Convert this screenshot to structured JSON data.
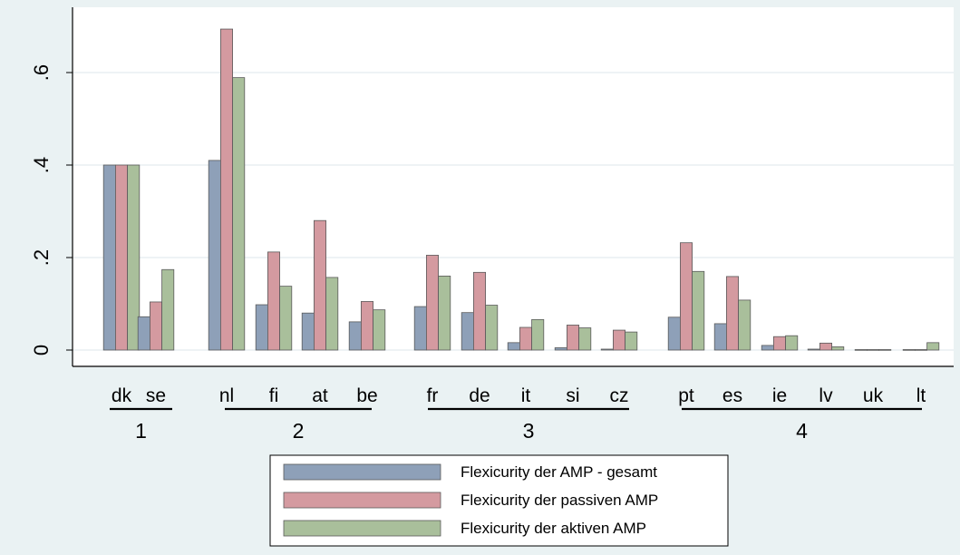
{
  "chart_data": {
    "type": "bar",
    "title": "",
    "xlabel": "",
    "ylabel": "",
    "ylim": [
      -0.04,
      0.74
    ],
    "yticks": [
      0,
      0.2,
      0.4,
      0.6
    ],
    "ytick_labels": [
      "0",
      ".2",
      ".4",
      ".6"
    ],
    "grid": true,
    "legend_position": "bottom",
    "groups": [
      {
        "label": "1",
        "countries": [
          "dk",
          "se"
        ]
      },
      {
        "label": "2",
        "countries": [
          "nl",
          "fi",
          "at",
          "be"
        ]
      },
      {
        "label": "3",
        "countries": [
          "fr",
          "de",
          "it",
          "si",
          "cz"
        ]
      },
      {
        "label": "4",
        "countries": [
          "pt",
          "es",
          "ie",
          "lv",
          "uk",
          "lt"
        ]
      }
    ],
    "categories": [
      "dk",
      "se",
      "nl",
      "fi",
      "at",
      "be",
      "fr",
      "de",
      "it",
      "si",
      "cz",
      "pt",
      "es",
      "ie",
      "lv",
      "uk",
      "lt"
    ],
    "series": [
      {
        "name": "Flexicurity der AMP - gesamt",
        "color": "#8ea0b8",
        "values": [
          0.4,
          0.072,
          0.41,
          0.098,
          0.08,
          0.061,
          0.094,
          0.081,
          0.016,
          0.005,
          0.002,
          0.071,
          0.057,
          0.01,
          0.002,
          0.001,
          0.001
        ]
      },
      {
        "name": "Flexicurity der passiven AMP",
        "color": "#d49aa0",
        "values": [
          0.4,
          0.104,
          0.694,
          0.212,
          0.28,
          0.105,
          0.205,
          0.168,
          0.049,
          0.054,
          0.043,
          0.232,
          0.159,
          0.029,
          0.015,
          0.001,
          0.001
        ]
      },
      {
        "name": "Flexicurity der aktiven AMP",
        "color": "#a9bf9b",
        "values": [
          0.4,
          0.174,
          0.589,
          0.138,
          0.157,
          0.087,
          0.16,
          0.097,
          0.066,
          0.048,
          0.039,
          0.17,
          0.108,
          0.031,
          0.007,
          0.001,
          0.016
        ]
      }
    ]
  }
}
